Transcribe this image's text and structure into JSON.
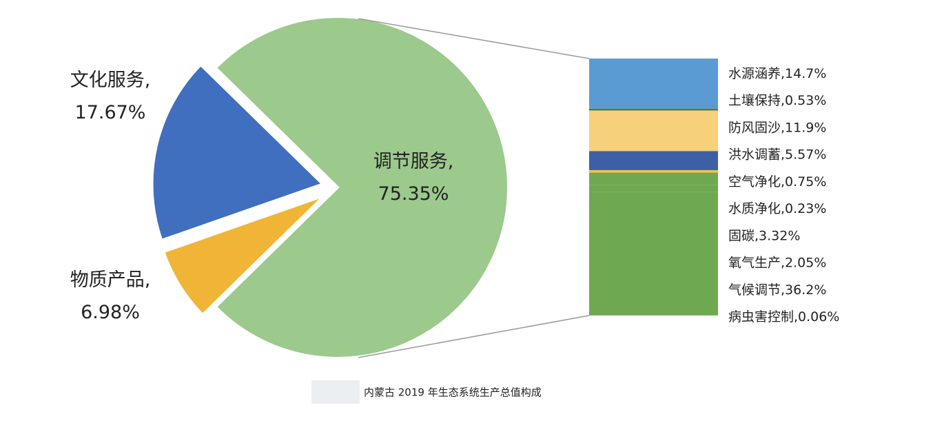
{
  "chart_data": [
    {
      "type": "pie",
      "categories": [
        "调节服务,",
        "文化服务,",
        "物质产品,"
      ],
      "values": [
        75.35,
        17.67,
        6.98
      ],
      "value_labels": [
        "75.35%",
        "17.67%",
        "6.98%"
      ],
      "colors": [
        "#9cc98c",
        "#3f6fbe",
        "#f0b537"
      ]
    },
    {
      "type": "bar",
      "series": [
        {
          "name": "水源涵养,",
          "color": "#5b9bd3",
          "values": [
            14.7
          ],
          "value_labels": [
            "14.7%"
          ]
        },
        {
          "name": "土壤保持,",
          "color": "#4d7c3a",
          "values": [
            0.53
          ],
          "value_labels": [
            "0.53%"
          ]
        },
        {
          "name": "防风固沙,",
          "color": "#f6d07a",
          "values": [
            11.9
          ],
          "value_labels": [
            "11.9%"
          ]
        },
        {
          "name": "洪水调蓄,",
          "color": "#3d5fa5",
          "values": [
            5.57
          ],
          "value_labels": [
            "5.57%"
          ]
        },
        {
          "name": "空气净化,",
          "color": "#f2c246",
          "values": [
            0.75
          ],
          "value_labels": [
            "0.75%"
          ]
        },
        {
          "name": "水质净化,",
          "color": "#5e8f3f",
          "values": [
            0.23
          ],
          "value_labels": [
            "0.23%"
          ]
        },
        {
          "name": "固碳,",
          "color": "#6ea951",
          "values": [
            3.32
          ],
          "value_labels": [
            "3.32%"
          ]
        },
        {
          "name": "氧气生产,",
          "color": "#6ea951",
          "values": [
            2.05
          ],
          "value_labels": [
            "2.05%"
          ]
        },
        {
          "name": "气候调节,",
          "color": "#6ea951",
          "values": [
            36.2
          ],
          "value_labels": [
            "36.2%"
          ]
        },
        {
          "name": "病虫害控制,",
          "color": "#6ea951",
          "values": [
            0.06
          ],
          "value_labels": [
            "0.06%"
          ]
        }
      ]
    }
  ],
  "caption": "内蒙古 2019 年生态系统生产总值构成"
}
